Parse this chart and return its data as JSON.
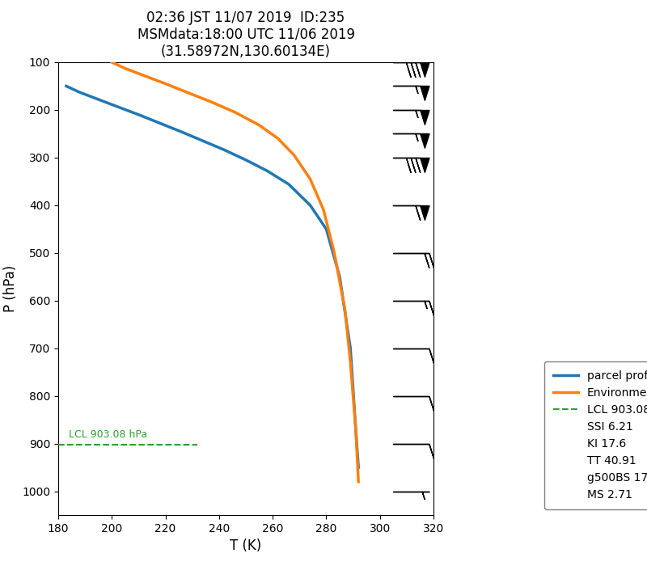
{
  "title": "02:36 JST 11/07 2019  ID:235\nMSMdata:18:00 UTC 11/06 2019\n(31.58972N,130.60134E)",
  "xlabel": "T (K)",
  "ylabel": "P (hPa)",
  "xlim": [
    180,
    320
  ],
  "ylim_top": 100,
  "ylim_bottom": 1050,
  "xticks": [
    180,
    200,
    220,
    240,
    260,
    280,
    300,
    320
  ],
  "yticks": [
    100,
    200,
    300,
    400,
    500,
    600,
    700,
    800,
    900,
    1000
  ],
  "parcel_color": "#1f77b4",
  "env_color": "#ff7f0e",
  "lcl_color": "#2ca02c",
  "lcl_pressure": 903.08,
  "lcl_label": "LCL 903.08 hPa",
  "parcel_T": [
    183,
    188,
    195,
    202,
    210,
    218,
    226,
    234,
    242,
    250,
    258,
    266,
    274,
    280,
    285,
    289,
    291,
    292
  ],
  "parcel_P": [
    150,
    163,
    178,
    193,
    210,
    228,
    246,
    265,
    284,
    305,
    328,
    356,
    400,
    450,
    550,
    700,
    870,
    950
  ],
  "env_T": [
    200,
    205,
    212,
    220,
    228,
    237,
    246,
    255,
    262,
    268,
    274,
    279,
    283,
    287,
    289,
    291,
    292
  ],
  "env_P": [
    100,
    113,
    128,
    145,
    163,
    183,
    205,
    232,
    260,
    295,
    345,
    410,
    500,
    620,
    730,
    870,
    980
  ],
  "wind_barb_pressures": [
    100,
    150,
    200,
    250,
    300,
    400,
    500,
    600,
    700,
    800,
    900,
    1000
  ],
  "wind_barb_u": [
    -80,
    -55,
    -55,
    -55,
    -80,
    -60,
    -20,
    -15,
    -10,
    -10,
    -10,
    -5
  ],
  "wind_barb_v": [
    0,
    0,
    0,
    0,
    0,
    0,
    0,
    0,
    0,
    0,
    0,
    0
  ],
  "wind_barb_x": 305,
  "background_color": "#ffffff"
}
